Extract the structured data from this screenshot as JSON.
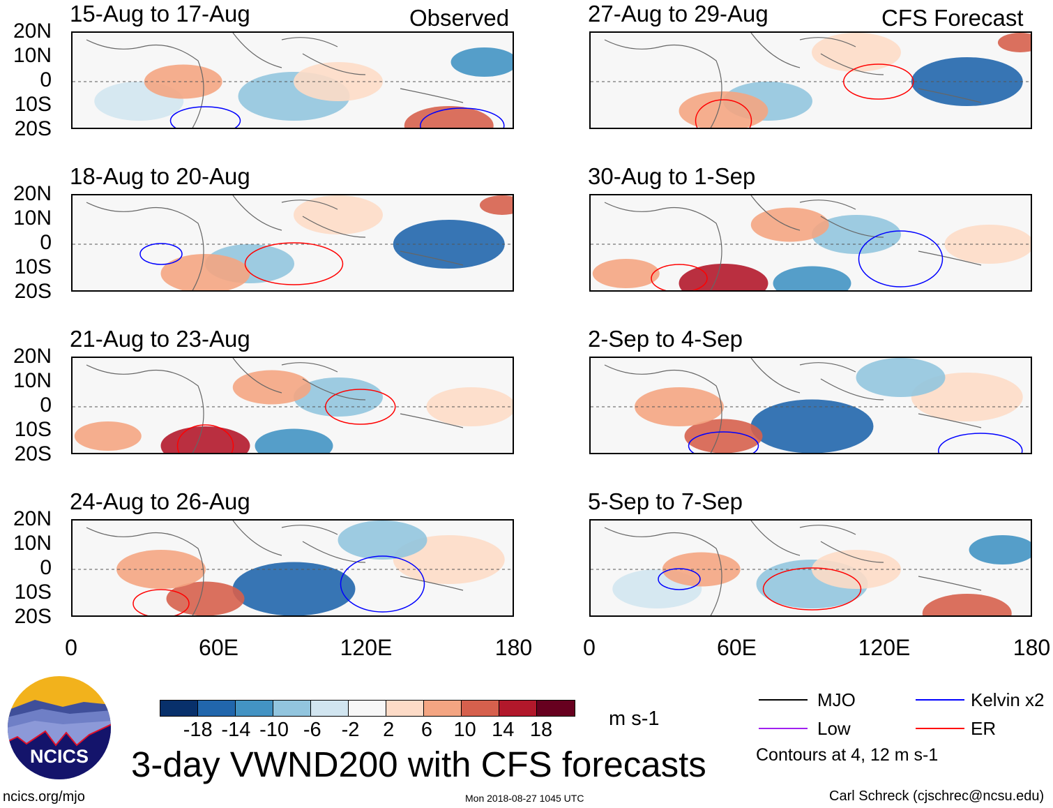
{
  "panels": {
    "left": [
      {
        "title": "15-Aug to 17-Aug"
      },
      {
        "title": "18-Aug to 20-Aug"
      },
      {
        "title": "21-Aug to 23-Aug"
      },
      {
        "title": "24-Aug to 26-Aug"
      }
    ],
    "right": [
      {
        "title": "27-Aug to 29-Aug"
      },
      {
        "title": "30-Aug to 1-Sep"
      },
      {
        "title": "2-Sep to 4-Sep"
      },
      {
        "title": "5-Sep to 7-Sep"
      }
    ],
    "left_tag": "Observed",
    "right_tag": "CFS Forecast"
  },
  "axes": {
    "y_ticks": [
      "20N",
      "10N",
      "0",
      "10S",
      "20S"
    ],
    "x_ticks": [
      "0",
      "60E",
      "120E",
      "180"
    ]
  },
  "colorbar": {
    "colors": [
      "#08306b",
      "#2166ac",
      "#4393c3",
      "#92c5de",
      "#d1e5f0",
      "#f7f7f7",
      "#fddbc7",
      "#f4a582",
      "#d6604d",
      "#b2182b",
      "#67001f"
    ],
    "labels": [
      "-18",
      "-14",
      "-10",
      "-6",
      "-2",
      "2",
      "6",
      "10",
      "14",
      "18"
    ],
    "unit": "m s-1"
  },
  "title": "3-day VWND200 with CFS forecasts",
  "legend": {
    "items": [
      {
        "label": "MJO",
        "color": "#000000"
      },
      {
        "label": "Kelvin x2",
        "color": "#0000ff"
      },
      {
        "label": "Low",
        "color": "#a020f0"
      },
      {
        "label": "ER",
        "color": "#ff0000"
      }
    ],
    "note": "Contours at 4, 12 m s-1"
  },
  "logo": {
    "text": "NCICS"
  },
  "footer": {
    "url": "ncics.org/mjo",
    "timestamp": "Mon 2018-08-27 1045 UTC",
    "author": "Carl Schreck (cjschrec@ncsu.edu)"
  }
}
